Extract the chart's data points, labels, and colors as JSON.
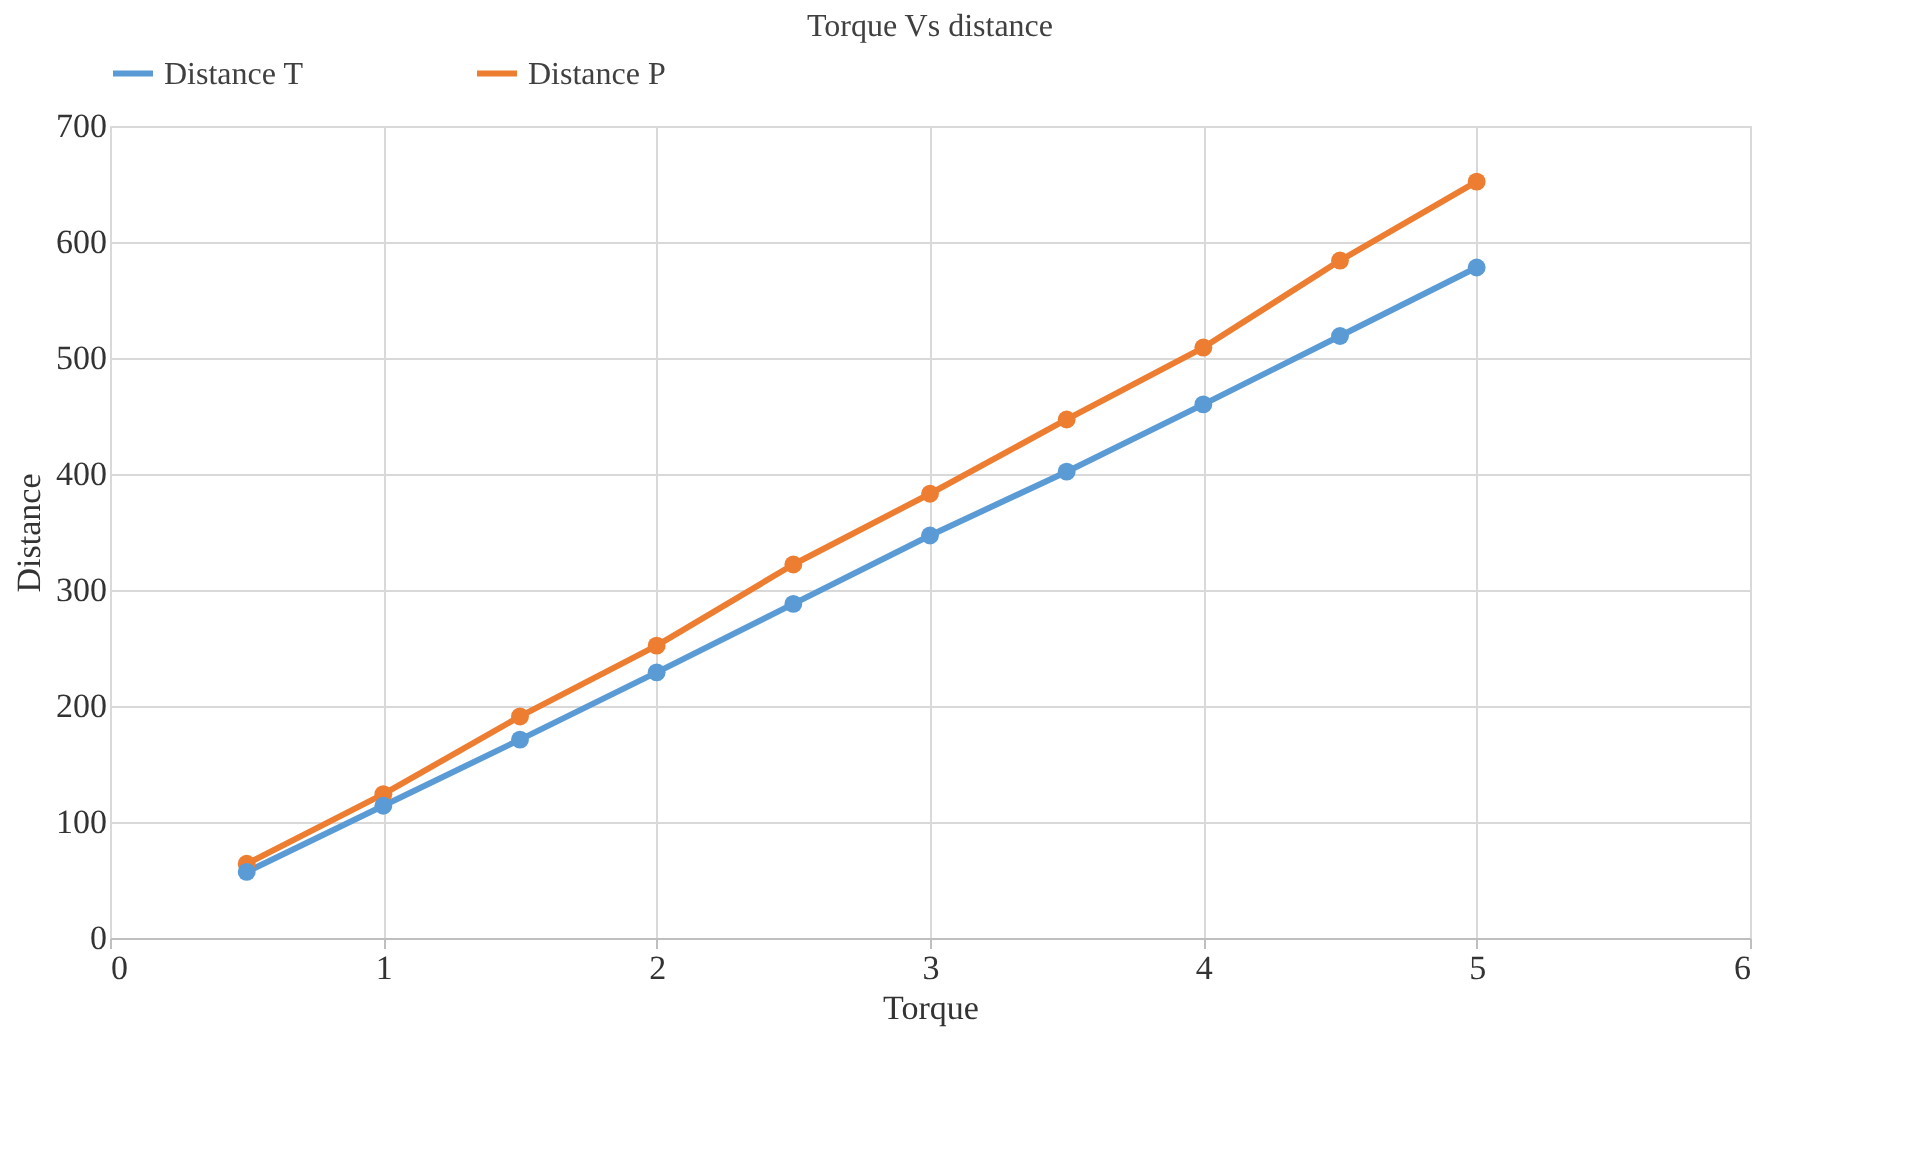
{
  "chart_data": {
    "type": "line",
    "title": "Torque Vs distance",
    "xlabel": "Torque",
    "ylabel": "Distance",
    "x": [
      0.5,
      1,
      1.5,
      2,
      2.5,
      3,
      3.5,
      4,
      4.5,
      5
    ],
    "series": [
      {
        "name": "Distance T",
        "color": "#5b9bd5",
        "values": [
          57,
          114,
          171,
          229,
          288,
          347,
          402,
          460,
          519,
          578
        ]
      },
      {
        "name": "Distance P",
        "color": "#ed7d31",
        "values": [
          64,
          124,
          191,
          252,
          322,
          383,
          447,
          509,
          584,
          652
        ]
      }
    ],
    "xlim": [
      0,
      6
    ],
    "xticks": [
      0,
      1,
      2,
      3,
      4,
      5,
      6
    ],
    "ylim": [
      0,
      700
    ],
    "yticks": [
      0,
      100,
      200,
      300,
      400,
      500,
      600,
      700
    ],
    "grid": true,
    "legend": "top",
    "marker": "circle",
    "line_style": "solid"
  }
}
